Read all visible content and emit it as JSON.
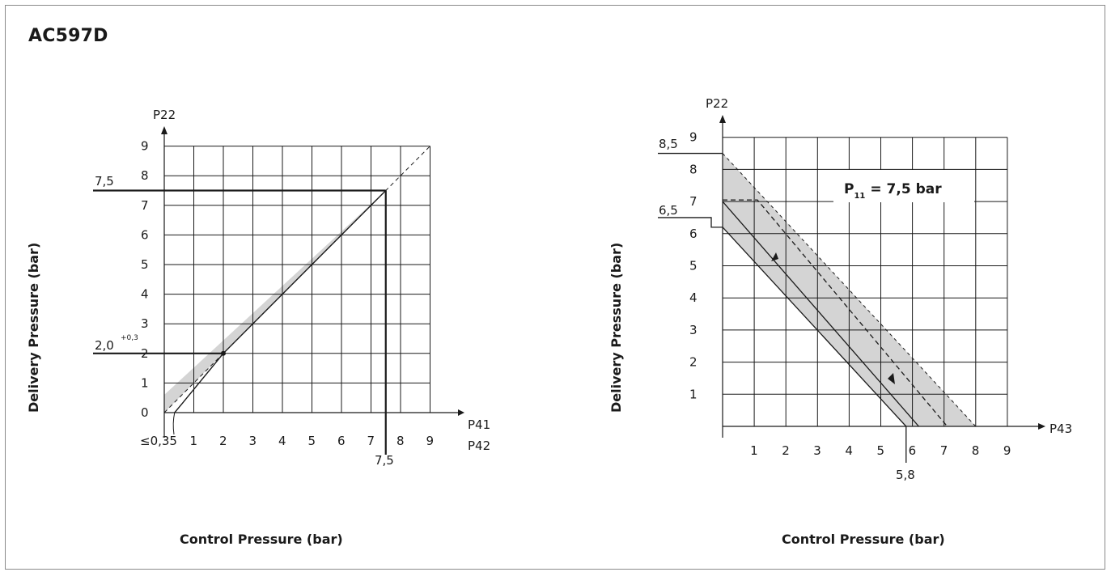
{
  "title": "AC597D",
  "colors": {
    "band": "#d4d4d4",
    "line": "#1a1a1a",
    "grid": "#1a1a1a",
    "frame": "#8a8a8a"
  },
  "chart_data": [
    {
      "type": "line",
      "ylabel": "Delivery Pressure (bar)",
      "xlabel": "Control Pressure (bar)",
      "y_axis_name": "P22",
      "x_axis_name_1": "P41",
      "x_axis_name_2": "P42",
      "xlim": [
        0,
        9
      ],
      "ylim": [
        0,
        9
      ],
      "x_ticks": [
        "1",
        "2",
        "3",
        "4",
        "5",
        "6",
        "7",
        "8",
        "9"
      ],
      "y_ticks": [
        "0",
        "1",
        "2",
        "3",
        "4",
        "5",
        "6",
        "7",
        "8",
        "9"
      ],
      "x_origin_label": "≤0,35",
      "grid": true,
      "series": [
        {
          "x": [
            0.35,
            0.6,
            2,
            7.5
          ],
          "y": [
            0,
            0.3,
            2,
            7.5
          ]
        },
        {
          "x": [
            0,
            7.5
          ],
          "y": [
            0,
            7.5
          ]
        }
      ],
      "band": {
        "x": [
          0,
          7.5
        ],
        "lower": [
          0,
          7.5
        ],
        "upper": [
          0.6,
          7.5
        ]
      },
      "annotations": {
        "y_75": "7,5",
        "y_20": "2,0",
        "y_20_sup": "+0,3",
        "x_75": "7,5"
      }
    },
    {
      "type": "line",
      "ylabel": "Delivery Pressure (bar)",
      "xlabel": "Control Pressure (bar)",
      "y_axis_name": "P22",
      "x_axis_name": "P43",
      "xlim": [
        0,
        9
      ],
      "ylim": [
        0,
        9
      ],
      "x_ticks": [
        "1",
        "2",
        "3",
        "4",
        "5",
        "6",
        "7",
        "8",
        "9"
      ],
      "y_ticks": [
        "1",
        "2",
        "3",
        "4",
        "5",
        "6",
        "7",
        "8",
        "9"
      ],
      "grid": true,
      "legend_text": "P",
      "legend_sub": "11",
      "legend_value": "= 7,5 bar",
      "series": [
        {
          "x": [
            0,
            6.2
          ],
          "y": [
            7,
            0
          ]
        },
        {
          "x": [
            0,
            7.1
          ],
          "y": [
            7,
            0
          ]
        }
      ],
      "band": {
        "x": [
          0,
          8
        ],
        "upper": [
          8.5,
          0
        ],
        "lower_start": 6.2,
        "lower_end_x": 5.8
      },
      "annotations": {
        "y_85": "8,5",
        "y_65": "6,5",
        "x_58": "5,8"
      }
    }
  ]
}
